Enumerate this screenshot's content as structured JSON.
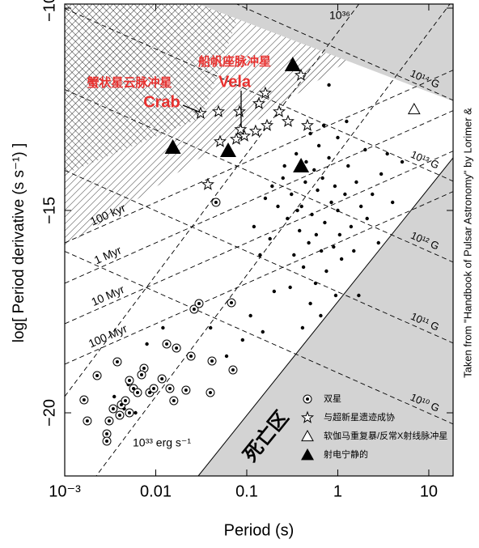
{
  "chart_data": {
    "type": "scatter",
    "x_label": "Period (s)",
    "y_label": "log[ Period derivative (s s⁻¹) ]",
    "xscale": "log",
    "xlim": [
      0.001,
      18.5
    ],
    "ylim": [
      -21.56,
      -9.9
    ],
    "xticks": [
      {
        "value": 0.001,
        "label": "10⁻³"
      },
      0.01,
      0.1,
      1,
      10
    ],
    "yticks": [
      {
        "value": -10,
        "label": "−10"
      },
      {
        "value": -15,
        "label": "−15"
      },
      {
        "value": -20,
        "label": "−20"
      }
    ],
    "legend_position": "lower right",
    "credit": "Taken from \"Handbook of Pulsar Astronomy\" by Lorimer &",
    "death_zone_label": "死亡区",
    "annotations": [
      {
        "text": "蟹状星云脉冲星",
        "color": "#e8312f"
      },
      {
        "text": "Crab",
        "color": "#e8312f"
      },
      {
        "text": "船帆座脉冲星",
        "color": "#e8312f"
      },
      {
        "text": "Vela",
        "color": "#e8312f"
      }
    ],
    "age_lines": [
      {
        "label": "100 kyr",
        "value": 100000
      },
      {
        "label": "1 Myr",
        "value": 1000000
      },
      {
        "label": "10 Myr",
        "value": 10000000
      },
      {
        "label": "100 Myr",
        "value": 100000000
      }
    ],
    "field_lines": [
      {
        "label": "10¹⁴ G",
        "value": 100000000000000.0
      },
      {
        "label": "10¹³ G",
        "value": 10000000000000.0
      },
      {
        "label": "10¹² G",
        "value": 1000000000000.0
      },
      {
        "label": "10¹¹ G",
        "value": 100000000000.0
      },
      {
        "label": "10¹⁰ G",
        "value": 10000000000.0
      }
    ],
    "edot_lines": [
      {
        "label": "10³⁶",
        "value": 1e+36
      },
      {
        "label": "10³³ erg s⁻¹",
        "value": 1e+33
      }
    ],
    "series": [
      {
        "marker": "dot",
        "color": "#000000",
        "x": [
          0.25,
          0.31,
          0.4,
          0.52,
          0.6,
          0.72,
          0.85,
          1.0,
          1.2,
          1.4,
          0.45,
          0.55,
          0.38,
          0.48,
          0.66,
          0.9,
          1.1,
          0.33,
          0.28,
          0.22,
          0.19,
          0.35,
          0.62,
          0.8,
          1.3,
          1.6,
          1.8,
          2.1,
          2.4,
          0.75,
          0.57,
          0.42,
          1.5,
          0.95,
          0.5,
          0.3,
          0.7,
          0.5,
          1.0,
          1.25,
          2.0,
          3.0,
          3.5,
          0.18,
          0.14,
          0.12,
          0.16,
          0.26,
          0.44,
          0.68,
          0.93,
          1.05,
          0.58,
          0.36,
          0.2,
          0.11,
          0.09,
          0.06,
          0.04,
          0.15,
          2.8,
          4.0,
          5.1,
          0.29,
          0.13,
          0.8,
          0.012,
          0.008,
          0.005,
          0.0045,
          0.006,
          0.0035,
          1.7,
          0.65,
          0.41
        ],
        "values": [
          -14.2,
          -14.6,
          -14.9,
          -15.1,
          -14.5,
          -15.3,
          -14.8,
          -15.0,
          -14.6,
          -15.4,
          -13.8,
          -14.0,
          -15.5,
          -15.8,
          -16.0,
          -15.9,
          -16.2,
          -16.1,
          -15.2,
          -14.9,
          -14.4,
          -13.6,
          -13.4,
          -13.7,
          -13.9,
          -14.3,
          -14.9,
          -15.2,
          -14.6,
          -16.5,
          -16.8,
          -16.4,
          -16.0,
          -17.1,
          -17.3,
          -16.9,
          -12.9,
          -13.1,
          -13.2,
          -12.8,
          -13.5,
          -14.1,
          -13.6,
          -15.7,
          -16.1,
          -15.4,
          -14.7,
          -13.9,
          -14.3,
          -14.2,
          -14.4,
          -15.6,
          -15.6,
          -15.0,
          -17.0,
          -17.6,
          -18.2,
          -18.6,
          -17.9,
          -18.0,
          -15.8,
          -14.8,
          -13.8,
          -12.8,
          -12.4,
          -11.9,
          -17.9,
          -18.3,
          -19.3,
          -19.9,
          -20.0,
          -19.6,
          -17.1,
          -17.6,
          -17.9
        ]
      },
      {
        "name": "双星",
        "marker": "circled-dot",
        "color": "#000000",
        "x": [
          0.00163,
          0.00227,
          0.00378,
          0.00514,
          0.0057,
          0.00743,
          0.00308,
          0.00341,
          0.00419,
          0.00464,
          0.00631,
          0.00858,
          0.0095,
          0.0143,
          0.0215,
          0.0158,
          0.0398,
          0.0706,
          0.0415,
          0.0244,
          0.0169,
          0.0132,
          0.0264,
          0.0678,
          0.0299,
          0.0459,
          0.00177,
          0.0029,
          0.0029,
          0.0117,
          0.00699,
          0.00514,
          0.00402
        ],
        "values": [
          -19.68,
          -19.08,
          -18.74,
          -19.2,
          -19.4,
          -18.9,
          -20.2,
          -19.9,
          -19.8,
          -19.7,
          -19.5,
          -19.5,
          -19.4,
          -19.4,
          -19.44,
          -19.7,
          -19.5,
          -18.94,
          -18.72,
          -18.6,
          -18.4,
          -18.3,
          -17.44,
          -17.28,
          -17.3,
          -14.8,
          -20.2,
          -20.52,
          -20.7,
          -19.16,
          -19.06,
          -20.0,
          -20.06
        ]
      },
      {
        "name": "与超新星遗迹成协",
        "marker": "star",
        "color": "#000000",
        "x": [
          0.394,
          0.16,
          0.136,
          0.0489,
          0.0311,
          0.0832,
          0.227,
          0.284,
          0.167,
          0.125,
          0.094,
          0.0509,
          0.464,
          0.0374,
          0.0766,
          0.0855
        ],
        "values": [
          -11.66,
          -12.1,
          -12.36,
          -12.56,
          -12.6,
          -12.56,
          -12.56,
          -12.8,
          -12.9,
          -13.04,
          -13.16,
          -13.3,
          -12.9,
          -14.36,
          -13.24,
          -13.0
        ]
      },
      {
        "name": "软伽马重复暴/反常X射线脉冲星",
        "marker": "open-triangle",
        "color": "#000000",
        "x": [
          6.9
        ],
        "values": [
          -12.5
        ]
      },
      {
        "name": "射电宁静的",
        "marker": "filled-triangle",
        "color": "#000000",
        "x": [
          0.32,
          0.0154,
          0.0625,
          0.395
        ],
        "values": [
          -11.4,
          -13.44,
          -13.52,
          -13.9
        ]
      }
    ]
  }
}
